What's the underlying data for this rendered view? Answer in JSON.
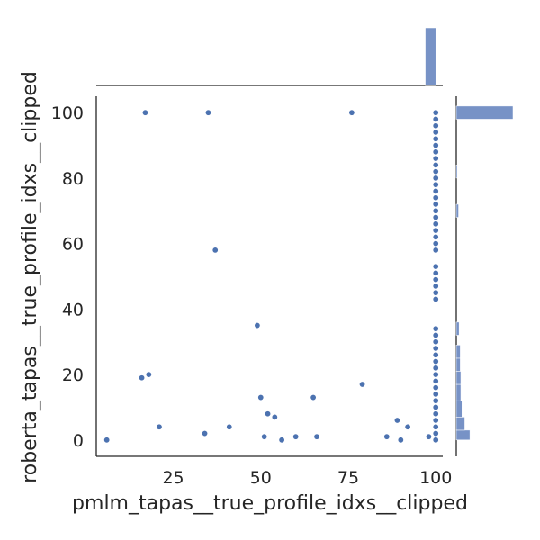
{
  "chart_data": {
    "type": "scatter",
    "title": "",
    "xlabel": "pmlm_tapas__true_profile_idxs__clipped",
    "ylabel": "roberta_tapas__true_profile_idxs__clipped",
    "xlim": [
      3,
      102
    ],
    "ylim": [
      -5,
      105
    ],
    "xticks": [
      25,
      50,
      75,
      100
    ],
    "yticks": [
      0,
      20,
      40,
      60,
      80,
      100
    ],
    "grid": false,
    "point_color": "#4c72b0",
    "bar_color": "#7792c6",
    "points": [
      [
        17,
        100
      ],
      [
        35,
        100
      ],
      [
        76,
        100
      ],
      [
        37,
        58
      ],
      [
        49,
        35
      ],
      [
        16,
        19
      ],
      [
        18,
        20
      ],
      [
        79,
        17
      ],
      [
        50,
        13
      ],
      [
        65,
        13
      ],
      [
        52,
        8
      ],
      [
        54,
        7
      ],
      [
        89,
        6
      ],
      [
        21,
        4
      ],
      [
        41,
        4
      ],
      [
        92,
        4
      ],
      [
        34,
        2
      ],
      [
        6,
        0
      ],
      [
        51,
        1
      ],
      [
        56,
        0
      ],
      [
        60,
        1
      ],
      [
        66,
        1
      ],
      [
        86,
        1
      ],
      [
        90,
        0
      ],
      [
        98,
        1
      ],
      [
        100,
        0
      ],
      [
        100,
        2
      ],
      [
        100,
        4
      ],
      [
        100,
        6
      ],
      [
        100,
        8
      ],
      [
        100,
        10
      ],
      [
        100,
        12
      ],
      [
        100,
        14
      ],
      [
        100,
        16
      ],
      [
        100,
        18
      ],
      [
        100,
        20
      ],
      [
        100,
        22
      ],
      [
        100,
        24
      ],
      [
        100,
        26
      ],
      [
        100,
        28
      ],
      [
        100,
        30
      ],
      [
        100,
        32
      ],
      [
        100,
        34
      ],
      [
        100,
        43
      ],
      [
        100,
        45
      ],
      [
        100,
        47
      ],
      [
        100,
        49
      ],
      [
        100,
        51
      ],
      [
        100,
        53
      ],
      [
        100,
        58
      ],
      [
        100,
        60
      ],
      [
        100,
        62
      ],
      [
        100,
        64
      ],
      [
        100,
        66
      ],
      [
        100,
        68
      ],
      [
        100,
        70
      ],
      [
        100,
        72
      ],
      [
        100,
        74
      ],
      [
        100,
        76
      ],
      [
        100,
        78
      ],
      [
        100,
        80
      ],
      [
        100,
        82
      ],
      [
        100,
        84
      ],
      [
        100,
        86
      ],
      [
        100,
        88
      ],
      [
        100,
        90
      ],
      [
        100,
        92
      ],
      [
        100,
        94
      ],
      [
        100,
        96
      ],
      [
        100,
        98
      ],
      [
        100,
        100
      ]
    ],
    "marginal_x": {
      "type": "histogram",
      "bins": [
        {
          "start": 97,
          "end": 100,
          "height": 1.0
        }
      ]
    },
    "marginal_y": {
      "type": "histogram",
      "bins": [
        {
          "start": 98,
          "end": 102,
          "height": 1.0
        },
        {
          "start": 0,
          "end": 3,
          "height": 0.24
        },
        {
          "start": 3,
          "end": 7,
          "height": 0.15
        },
        {
          "start": 7,
          "end": 12,
          "height": 0.1
        },
        {
          "start": 12,
          "end": 17,
          "height": 0.08
        },
        {
          "start": 17,
          "end": 21,
          "height": 0.08
        },
        {
          "start": 21,
          "end": 25,
          "height": 0.07
        },
        {
          "start": 25,
          "end": 29,
          "height": 0.07
        },
        {
          "start": 32,
          "end": 36,
          "height": 0.05
        },
        {
          "start": 68,
          "end": 72,
          "height": 0.04
        },
        {
          "start": 80,
          "end": 84,
          "height": 0.02
        }
      ]
    }
  }
}
